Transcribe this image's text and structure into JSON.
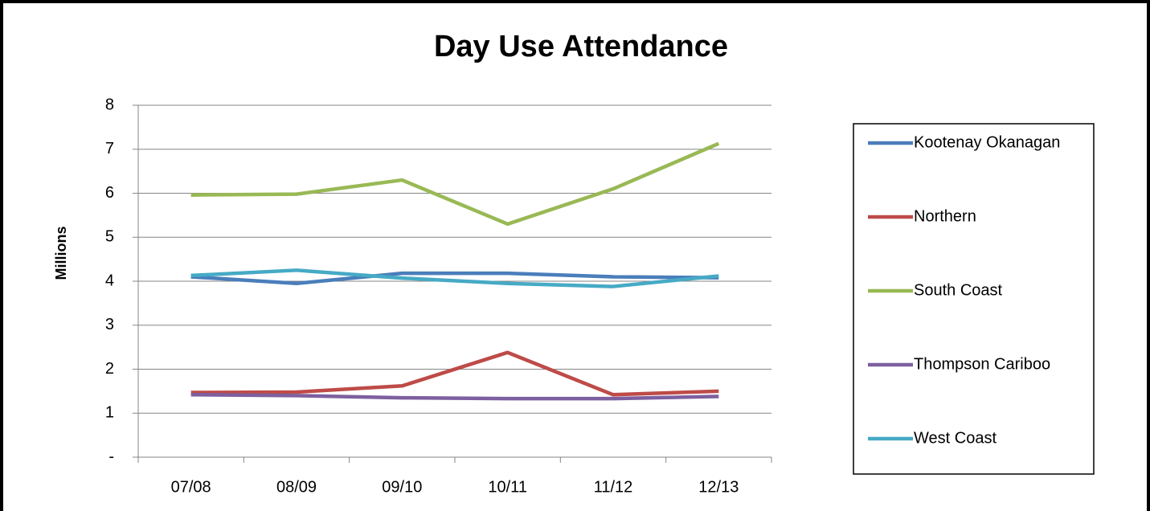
{
  "chart_data": {
    "type": "line",
    "title": "Day Use Attendance",
    "y_label": "Millions",
    "categories": [
      "07/08",
      "08/09",
      "09/10",
      "10/11",
      "11/12",
      "12/13"
    ],
    "series": [
      {
        "name": "Kootenay Okanagan",
        "color": "#4a7ebb",
        "values": [
          4.1,
          3.95,
          4.18,
          4.18,
          4.1,
          4.08
        ]
      },
      {
        "name": "Northern",
        "color": "#be4b48",
        "values": [
          1.47,
          1.48,
          1.62,
          2.38,
          1.42,
          1.5
        ]
      },
      {
        "name": "South Coast",
        "color": "#98b954",
        "values": [
          5.96,
          5.98,
          6.3,
          5.3,
          6.1,
          7.13
        ]
      },
      {
        "name": "Thompson Cariboo",
        "color": "#7d60a0",
        "values": [
          1.42,
          1.4,
          1.35,
          1.33,
          1.33,
          1.38
        ]
      },
      {
        "name": "West Coast",
        "color": "#46aac5",
        "values": [
          4.13,
          4.25,
          4.07,
          3.95,
          3.88,
          4.12
        ]
      }
    ],
    "ylim": [
      0,
      8
    ],
    "yticks": [
      {
        "value": 0,
        "label": "-"
      },
      1,
      2,
      3,
      4,
      5,
      6,
      7,
      8
    ],
    "grid": true,
    "legend": "right"
  }
}
